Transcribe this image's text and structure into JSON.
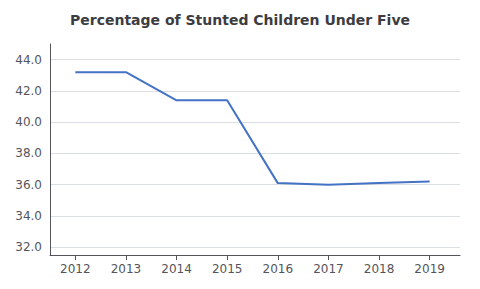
{
  "chart_data": {
    "type": "line",
    "title": "Percentage of Stunted Children Under Five",
    "x": [
      2012,
      2013,
      2014,
      2015,
      2016,
      2017,
      2018,
      2019
    ],
    "values": [
      43.2,
      43.2,
      41.4,
      41.4,
      36.1,
      36.0,
      36.1,
      36.2
    ],
    "color": "#4472c4",
    "xlim": [
      2011.5,
      2019.6
    ],
    "xticks": [
      2012,
      2013,
      2014,
      2015,
      2016,
      2017,
      2018,
      2019
    ],
    "ylim": [
      31.5,
      45.0
    ],
    "yticks": [
      {
        "value": 32.0,
        "label": "32.0"
      },
      {
        "value": 34.0,
        "label": "34.0"
      },
      {
        "value": 36.0,
        "label": "36.0"
      },
      {
        "value": 38.0,
        "label": "38.0"
      },
      {
        "value": 40.0,
        "label": "40.0"
      },
      {
        "value": 42.0,
        "label": "42.0"
      },
      {
        "value": 44.0,
        "label": "44.0"
      }
    ],
    "grid": true
  }
}
